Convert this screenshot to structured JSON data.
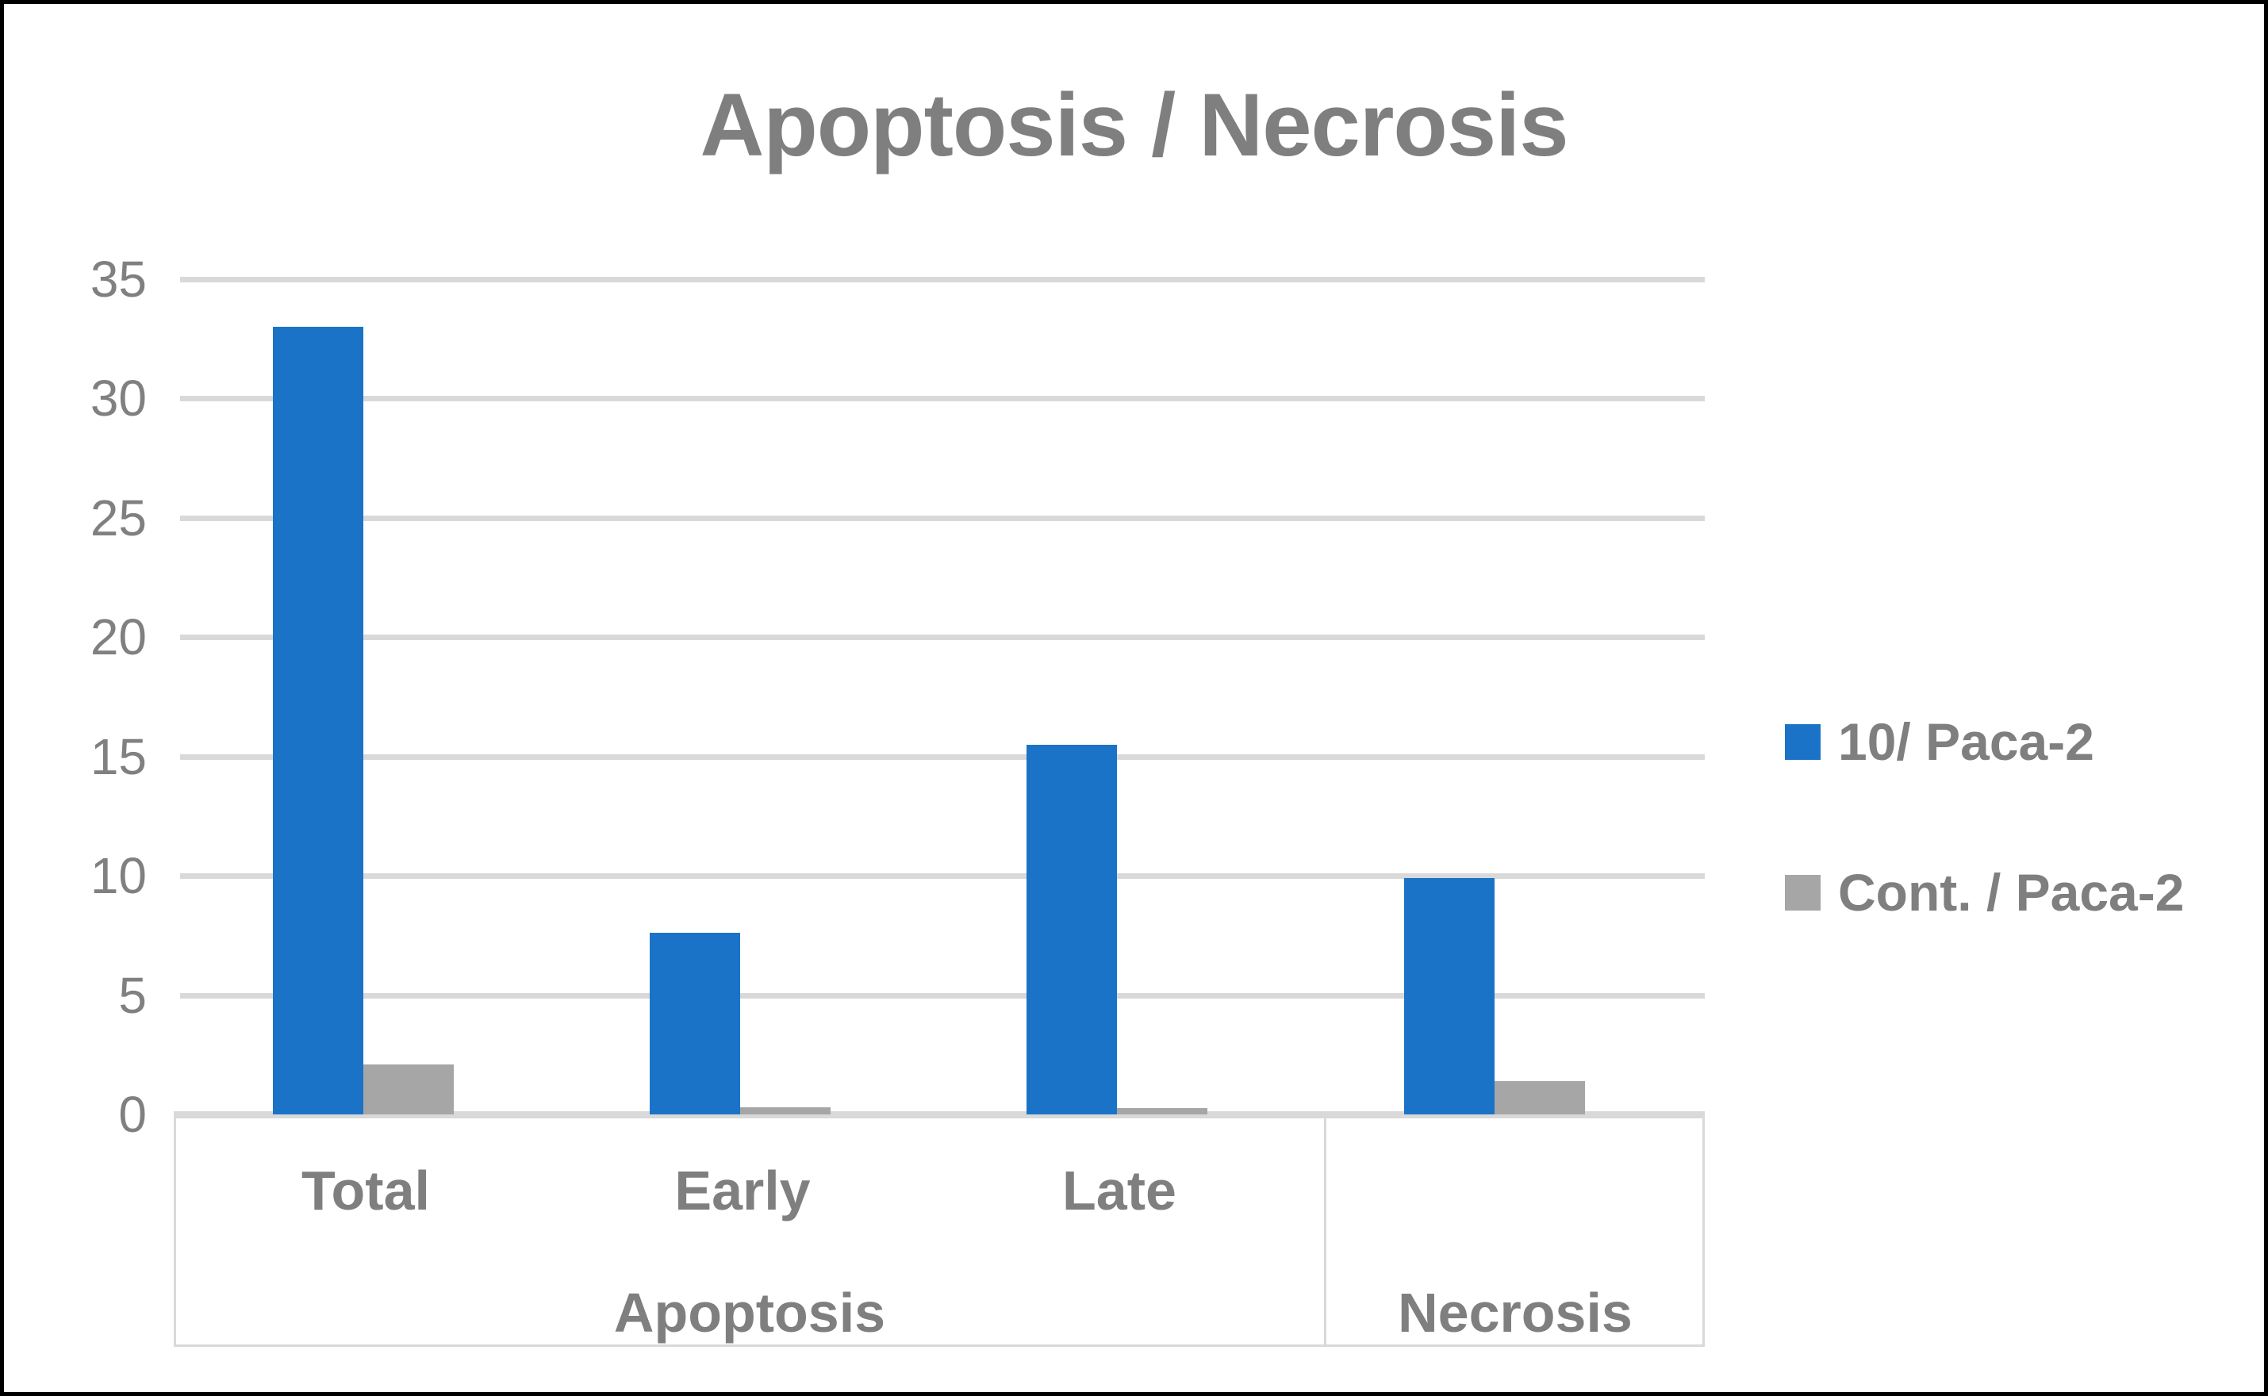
{
  "title": "Apoptosis / Necrosis",
  "chart_data": {
    "type": "bar",
    "title": "Apoptosis / Necrosis",
    "categories": [
      "Total",
      "Early",
      "Late",
      "Necrosis"
    ],
    "category_groups": [
      {
        "label": "Apoptosis",
        "span": [
          "Total",
          "Early",
          "Late"
        ]
      },
      {
        "label": "Necrosis",
        "span": [
          "Necrosis"
        ]
      }
    ],
    "series": [
      {
        "name": "10/ Paca-2",
        "color": "#1b73c8",
        "values": [
          33,
          7.6,
          15.5,
          9.9
        ]
      },
      {
        "name": "Cont. / Paca-2",
        "color": "#a6a6a6",
        "values": [
          2.1,
          0.3,
          0.25,
          1.4
        ]
      }
    ],
    "ylim": [
      0,
      35
    ],
    "yticks": [
      0,
      5,
      10,
      15,
      20,
      25,
      30,
      35
    ],
    "ylabel": "",
    "xlabel": "",
    "grid": true,
    "legend_position": "right"
  },
  "colors": {
    "series_blue": "#1b73c8",
    "series_gray": "#a6a6a6",
    "gridline": "#d9d9d9",
    "axis_line": "#d9d9d9",
    "text": "#7f7f7f",
    "tick_text": "#808080",
    "frame_border": "#000000",
    "background": "#ffffff"
  }
}
